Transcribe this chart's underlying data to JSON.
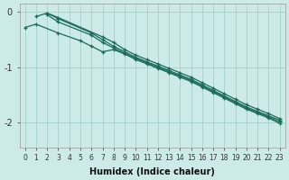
{
  "title": "",
  "xlabel": "Humidex (Indice chaleur)",
  "ylabel": "",
  "bg_color": "#cceae8",
  "grid_color": "#aad4d0",
  "line_color": "#1a6b5a",
  "xlim": [
    -0.5,
    23.5
  ],
  "ylim": [
    -2.45,
    0.15
  ],
  "yticks": [
    0,
    -1,
    -2
  ],
  "xticks": [
    0,
    1,
    2,
    3,
    4,
    5,
    6,
    7,
    8,
    9,
    10,
    11,
    12,
    13,
    14,
    15,
    16,
    17,
    18,
    19,
    20,
    21,
    22,
    23
  ],
  "series": [
    {
      "points": [
        [
          1,
          -0.08
        ],
        [
          2,
          -0.02
        ],
        [
          3,
          -0.12
        ],
        [
          6,
          -0.38
        ],
        [
          7,
          -0.5
        ],
        [
          8,
          -0.62
        ],
        [
          9,
          -0.72
        ],
        [
          10,
          -0.82
        ],
        [
          11,
          -0.9
        ],
        [
          12,
          -0.98
        ],
        [
          13,
          -1.06
        ],
        [
          14,
          -1.14
        ],
        [
          15,
          -1.22
        ],
        [
          16,
          -1.32
        ],
        [
          17,
          -1.42
        ],
        [
          18,
          -1.52
        ],
        [
          19,
          -1.62
        ],
        [
          20,
          -1.72
        ],
        [
          21,
          -1.8
        ],
        [
          22,
          -1.88
        ],
        [
          23,
          -1.96
        ]
      ]
    },
    {
      "points": [
        [
          2,
          -0.05
        ],
        [
          3,
          -0.18
        ],
        [
          6,
          -0.42
        ],
        [
          7,
          -0.55
        ],
        [
          8,
          -0.65
        ],
        [
          9,
          -0.75
        ],
        [
          10,
          -0.84
        ],
        [
          11,
          -0.92
        ],
        [
          12,
          -1.0
        ],
        [
          13,
          -1.08
        ],
        [
          14,
          -1.16
        ],
        [
          15,
          -1.24
        ],
        [
          16,
          -1.34
        ],
        [
          17,
          -1.44
        ],
        [
          18,
          -1.54
        ],
        [
          19,
          -1.64
        ],
        [
          20,
          -1.74
        ],
        [
          21,
          -1.82
        ],
        [
          22,
          -1.9
        ],
        [
          23,
          -1.99
        ]
      ]
    },
    {
      "points": [
        [
          0,
          -0.28
        ],
        [
          1,
          -0.22
        ],
        [
          3,
          -0.38
        ],
        [
          5,
          -0.52
        ],
        [
          6,
          -0.62
        ],
        [
          7,
          -0.72
        ],
        [
          8,
          -0.68
        ],
        [
          9,
          -0.76
        ],
        [
          10,
          -0.86
        ],
        [
          11,
          -0.94
        ],
        [
          12,
          -1.02
        ],
        [
          13,
          -1.1
        ],
        [
          14,
          -1.18
        ],
        [
          15,
          -1.26
        ],
        [
          16,
          -1.36
        ],
        [
          17,
          -1.46
        ],
        [
          18,
          -1.56
        ],
        [
          19,
          -1.66
        ],
        [
          20,
          -1.76
        ],
        [
          21,
          -1.84
        ],
        [
          22,
          -1.92
        ],
        [
          23,
          -2.02
        ]
      ]
    },
    {
      "points": [
        [
          2,
          -0.02
        ],
        [
          3,
          -0.1
        ],
        [
          7,
          -0.45
        ],
        [
          8,
          -0.55
        ],
        [
          9,
          -0.68
        ],
        [
          10,
          -0.78
        ],
        [
          11,
          -0.86
        ],
        [
          12,
          -0.94
        ],
        [
          13,
          -1.02
        ],
        [
          14,
          -1.1
        ],
        [
          15,
          -1.18
        ],
        [
          16,
          -1.28
        ],
        [
          17,
          -1.38
        ],
        [
          18,
          -1.48
        ],
        [
          19,
          -1.58
        ],
        [
          20,
          -1.68
        ],
        [
          21,
          -1.76
        ],
        [
          22,
          -1.84
        ],
        [
          23,
          -1.93
        ]
      ]
    }
  ]
}
